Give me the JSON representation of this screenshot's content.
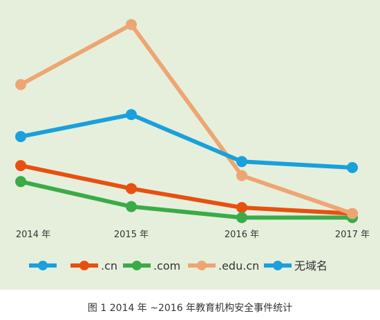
{
  "figure": {
    "caption": "图 1  2014 年 ~2016 年教育机构安全事件统计",
    "background_color": "#e6efdc"
  },
  "chart_data": {
    "type": "line",
    "categories": [
      "2014 年",
      "2015 年",
      "2016 年",
      "2017 年"
    ],
    "y_scale": "relative (no axis printed)",
    "grid": false,
    "legend_placement": "bottom",
    "series": [
      {
        "name": "",
        "color": "#1aa0dc",
        "values": [
          null,
          null,
          null,
          null
        ],
        "legend_only": true
      },
      {
        "name": ".cn",
        "color": "#e8500f",
        "values": [
          6.2,
          3.9,
          2.0,
          1.4
        ]
      },
      {
        "name": ".com",
        "color": "#3aab47",
        "values": [
          4.6,
          2.1,
          1.0,
          1.0
        ]
      },
      {
        "name": ".edu.cn",
        "color": "#eda673",
        "values": [
          14.3,
          20.3,
          5.2,
          1.4
        ]
      },
      {
        "name": "无域名",
        "color": "#1aa0dc",
        "values": [
          9.1,
          11.3,
          6.6,
          6.0
        ]
      }
    ]
  }
}
